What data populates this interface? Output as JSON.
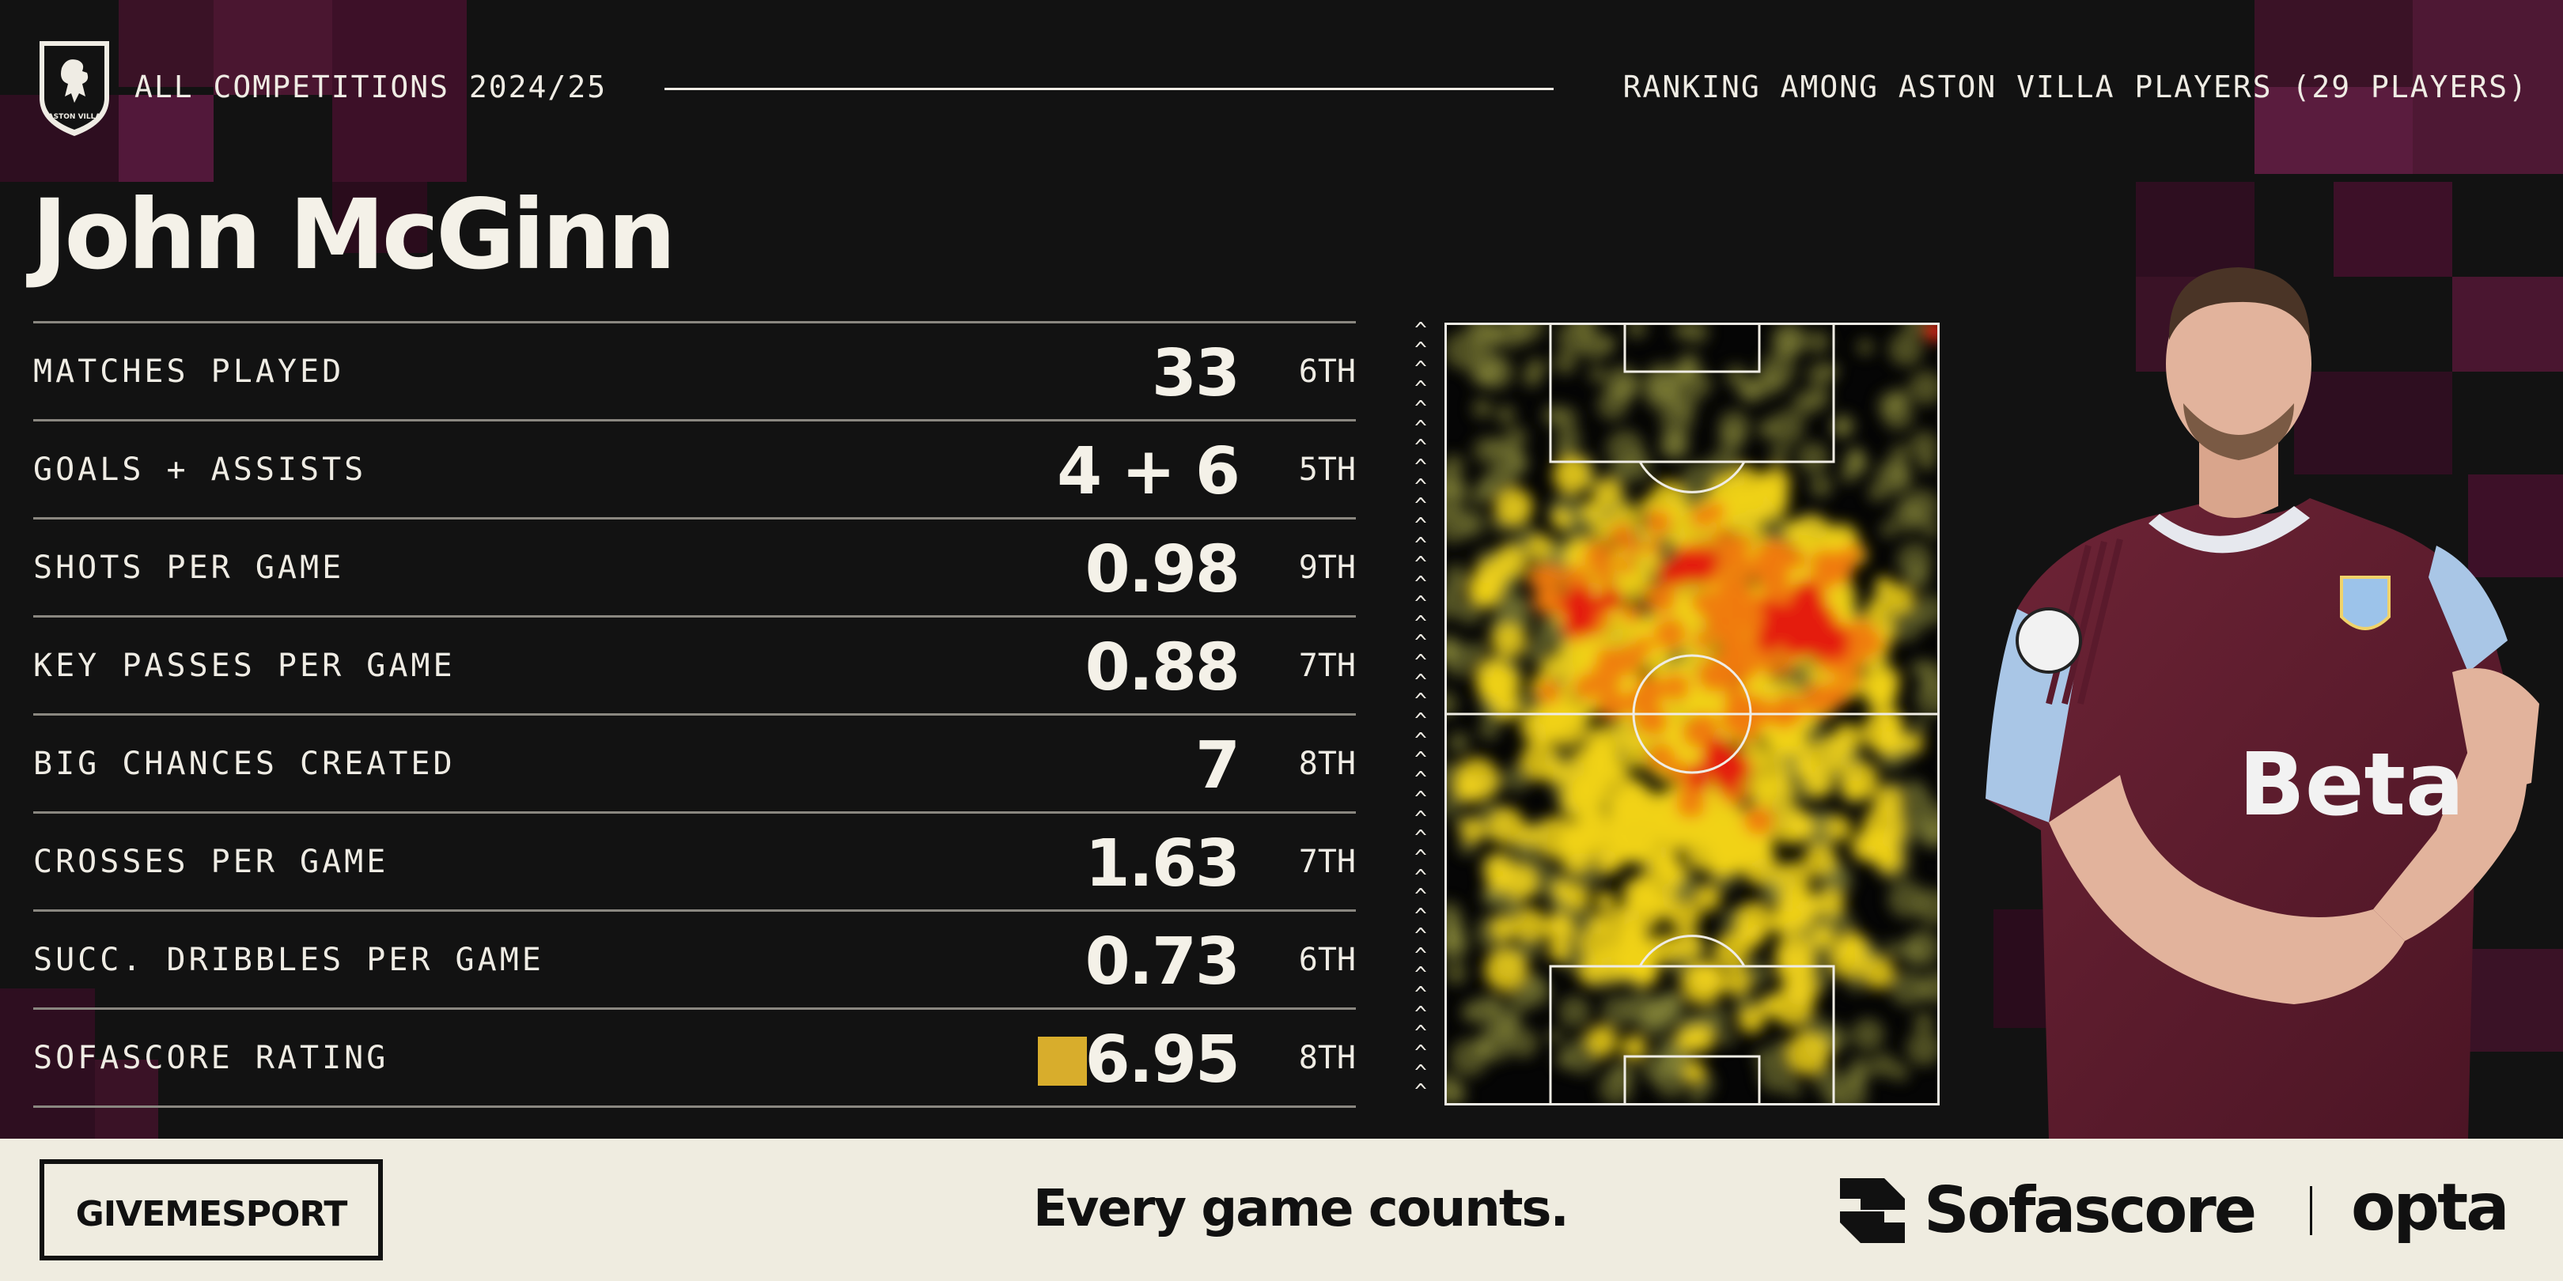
{
  "header": {
    "competition": "ALL COMPETITIONS 2024/25",
    "ranking_note": "RANKING AMONG ASTON VILLA PLAYERS (29 PLAYERS)"
  },
  "crest_text": "ASTON VILLA",
  "player_name": "John McGinn",
  "stats": [
    {
      "label": "MATCHES PLAYED",
      "value": "33",
      "rank": "6TH"
    },
    {
      "label": "GOALS + ASSISTS",
      "value": "4 + 6",
      "rank": "5TH"
    },
    {
      "label": "SHOTS PER GAME",
      "value": "0.98",
      "rank": "9TH"
    },
    {
      "label": "KEY PASSES PER GAME",
      "value": "0.88",
      "rank": "7TH"
    },
    {
      "label": "BIG CHANCES CREATED",
      "value": "7",
      "rank": "8TH"
    },
    {
      "label": "CROSSES PER GAME",
      "value": "1.63",
      "rank": "7TH"
    },
    {
      "label": "SUCC. DRIBBLES PER GAME",
      "value": "0.73",
      "rank": "6TH"
    },
    {
      "label": "SOFASCORE RATING",
      "value": "6.95",
      "rank": "8TH"
    }
  ],
  "rating_color": "#d8ad2c",
  "pitch_direction_glyph": "^",
  "shirt_sponsor": "Beta",
  "footer": {
    "brand": "GIVEMESPORT",
    "tagline": "Every game counts.",
    "partner_1": "Sofascore",
    "partner_2": "opta"
  },
  "colors": {
    "background": "#121212",
    "accent_claret": "#5a1a3c",
    "text": "#efece4",
    "footer_bg": "#efece0"
  }
}
